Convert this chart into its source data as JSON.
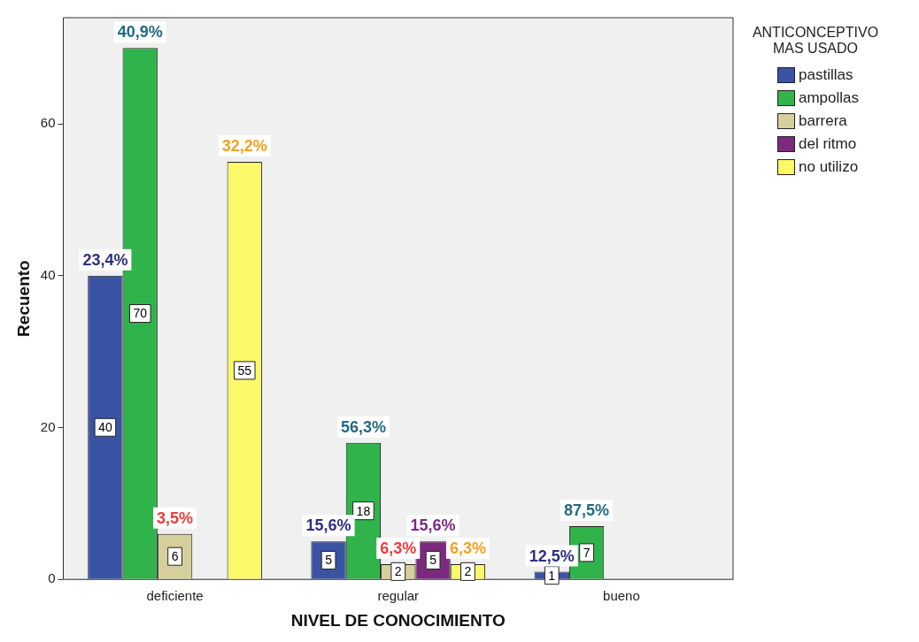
{
  "chart_data": {
    "type": "bar",
    "xlabel": "NIVEL DE CONOCIMIENTO",
    "ylabel": "Recuento",
    "legend_title": "ANTICONCEPTIVO MAS USADO",
    "legend": "right",
    "grid": false,
    "data_labels": true,
    "categories": [
      "deficiente",
      "regular",
      "bueno"
    ],
    "ylim": [
      0,
      74
    ],
    "yticks": [
      0,
      20,
      40,
      60
    ],
    "series": [
      {
        "name": "pastillas",
        "color": "#3a53a4",
        "values": [
          40,
          5,
          1
        ]
      },
      {
        "name": "ampollas",
        "color": "#31b34b",
        "values": [
          70,
          18,
          7
        ]
      },
      {
        "name": "barrera",
        "color": "#d5cf9c",
        "values": [
          6,
          2,
          null
        ]
      },
      {
        "name": "del ritmo",
        "color": "#7c2a7f",
        "values": [
          null,
          5,
          null
        ]
      },
      {
        "name": "no utilizo",
        "color": "#fbf969",
        "values": [
          55,
          2,
          null
        ]
      }
    ],
    "annotations": [
      "23,4%",
      "15,6%",
      "12,5%",
      "40,9%",
      "56,3%",
      "87,5%",
      "3,5%",
      "6,3%",
      "15,6%",
      "32,2%",
      "6,3%"
    ]
  }
}
